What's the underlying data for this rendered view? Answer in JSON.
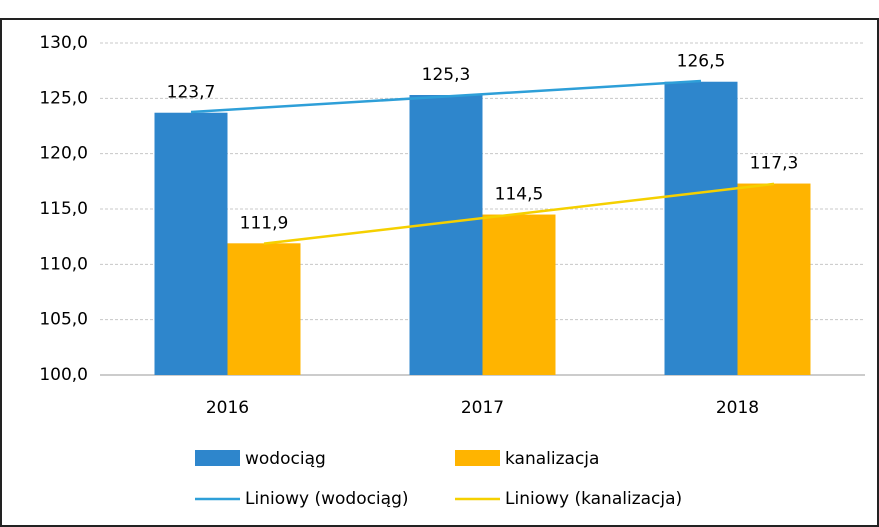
{
  "chart_data": {
    "type": "bar",
    "categories": [
      "2016",
      "2017",
      "2018"
    ],
    "series": [
      {
        "name": "wodociąg",
        "color": "#2e86cc",
        "values": [
          123.7,
          125.3,
          126.5
        ],
        "value_labels": [
          "123,7",
          "125,3",
          "126,5"
        ]
      },
      {
        "name": "kanalizacja",
        "color": "#ffb400",
        "values": [
          111.9,
          114.5,
          117.3
        ],
        "value_labels": [
          "111,9",
          "114,5",
          "117,3"
        ]
      }
    ],
    "trendlines": [
      {
        "name": "Liniowy (wodociąg)",
        "color": "#2e9fd8",
        "series": 0
      },
      {
        "name": "Liniowy (kanalizacja)",
        "color": "#f5d000",
        "series": 1
      }
    ],
    "ylim": [
      100,
      130
    ],
    "yticks": [
      {
        "value": 100,
        "label": "100,0"
      },
      {
        "value": 105,
        "label": "105,0"
      },
      {
        "value": 110,
        "label": "110,0"
      },
      {
        "value": 115,
        "label": "115,0"
      },
      {
        "value": 120,
        "label": "120,0"
      },
      {
        "value": 125,
        "label": "125,0"
      },
      {
        "value": 130,
        "label": "130,0"
      }
    ],
    "grid": true
  }
}
